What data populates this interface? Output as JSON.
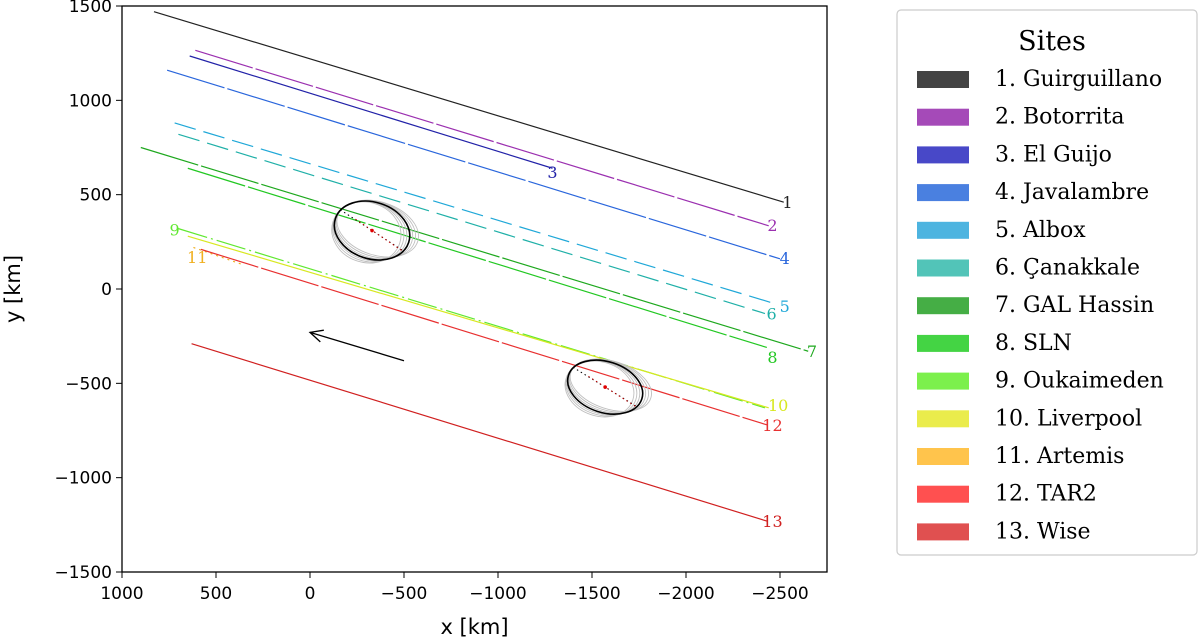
{
  "chart_data": {
    "type": "line",
    "xlabel": "x [km]",
    "ylabel": "y [km]",
    "xlim": [
      1000,
      -2750
    ],
    "ylim": [
      -1500,
      1500
    ],
    "x_ticks": [
      1000,
      500,
      0,
      -500,
      -1000,
      -1500,
      -2000,
      -2500
    ],
    "y_ticks": [
      1500,
      1000,
      500,
      0,
      -500,
      -1000,
      -1500
    ],
    "x_tick_labels": [
      "1000",
      "500",
      "0",
      "−500",
      "−1000",
      "−1500",
      "−2000",
      "−2500"
    ],
    "y_tick_labels": [
      "1500",
      "1000",
      "500",
      "0",
      "−500",
      "−1000",
      "−1500"
    ],
    "grid": false,
    "legend": {
      "title": "Sites",
      "placement": "outside-right"
    },
    "series": [
      {
        "name": "1. Guirguillano",
        "label": "1",
        "color": "#222222",
        "legend_color": "#444444",
        "x": [
          830,
          -2520
        ],
        "y": [
          1470,
          460
        ],
        "label_at": [
          -2540,
          455
        ],
        "dash": "solid"
      },
      {
        "name": "2. Botorrita",
        "label": "2",
        "color": "#9b30b0",
        "legend_color": "#a54ab8",
        "x": [
          610,
          -2440
        ],
        "y": [
          1265,
          335
        ],
        "label_at": [
          -2460,
          335
        ],
        "dash": "long"
      },
      {
        "name": "3. El Guijo",
        "label": "3",
        "color": "#2222a8",
        "legend_color": "#4848c8",
        "x": [
          640,
          -1290
        ],
        "y": [
          1235,
          640
        ],
        "label_at": [
          -1290,
          615
        ],
        "dash": "solid"
      },
      {
        "name": "4. Javalambre",
        "label": "4",
        "color": "#2a66dc",
        "legend_color": "#4a80e0",
        "x": [
          760,
          -2500
        ],
        "y": [
          1160,
          160
        ],
        "label_at": [
          -2525,
          160
        ],
        "dash": "long"
      },
      {
        "name": "5. Albox",
        "label": "5",
        "color": "#20a8d8",
        "legend_color": "#4db4e0",
        "x": [
          720,
          -2480
        ],
        "y": [
          880,
          -80
        ],
        "label_at": [
          -2525,
          -95
        ],
        "dash": "dash"
      },
      {
        "name": "6. Çanakkale",
        "label": "6",
        "color": "#20b0a8",
        "legend_color": "#52c4b8",
        "x": [
          700,
          -2420
        ],
        "y": [
          820,
          -130
        ],
        "label_at": [
          -2455,
          -135
        ],
        "dash": "dash"
      },
      {
        "name": "7. GAL Hassin",
        "label": "7",
        "color": "#1ea81e",
        "legend_color": "#45ae45",
        "x": [
          900,
          -2650
        ],
        "y": [
          750,
          -330
        ],
        "label_at": [
          -2670,
          -335
        ],
        "dash": "long"
      },
      {
        "name": "8. SLN",
        "label": "8",
        "color": "#22c822",
        "legend_color": "#44d444",
        "x": [
          650,
          -2430
        ],
        "y": [
          640,
          -310
        ],
        "label_at": [
          -2460,
          -365
        ],
        "dash": "long"
      },
      {
        "name": "9. Oukaimeden",
        "label": "9",
        "color": "#60e830",
        "legend_color": "#7cf04c",
        "x": [
          700,
          -2420
        ],
        "y": [
          320,
          -630
        ],
        "label_at": [
          720,
          310
        ],
        "dash": "dotdash"
      },
      {
        "name": "10. Liverpool",
        "label": "10",
        "color": "#d8e820",
        "legend_color": "#eaec4c",
        "x": [
          650,
          -2440
        ],
        "y": [
          280,
          -630
        ],
        "label_at": [
          -2490,
          -620
        ],
        "dash": "solid"
      },
      {
        "name": "11. Artemis",
        "label": "11",
        "color": "#f0b020",
        "legend_color": "#ffc44c",
        "x": [
          620,
          360
        ],
        "y": [
          220,
          130
        ],
        "label_at": [
          600,
          165
        ],
        "dash": "dotted"
      },
      {
        "name": "12. TAR2",
        "label": "12",
        "color": "#e83030",
        "legend_color": "#ff5050",
        "x": [
          580,
          -2430
        ],
        "y": [
          210,
          -720
        ],
        "label_at": [
          -2460,
          -725
        ],
        "dash": "long"
      },
      {
        "name": "13. Wise",
        "label": "13",
        "color": "#d02020",
        "legend_color": "#e05050",
        "x": [
          630,
          -2430
        ],
        "y": [
          -290,
          -1230
        ],
        "label_at": [
          -2460,
          -1235
        ],
        "dash": "solid"
      }
    ],
    "profiles": [
      {
        "cx": -330,
        "cy": 310,
        "rx": 205,
        "ry": 150,
        "rot": 18
      },
      {
        "cx": -1570,
        "cy": -520,
        "rx": 205,
        "ry": 135,
        "rot": 18
      }
    ],
    "arrow": {
      "from": [
        -500,
        -380
      ],
      "to": [
        0,
        -230
      ]
    },
    "colors": {
      "ellipse": "#000000",
      "fits": "#bfbfbf",
      "center": "#e00000"
    }
  }
}
